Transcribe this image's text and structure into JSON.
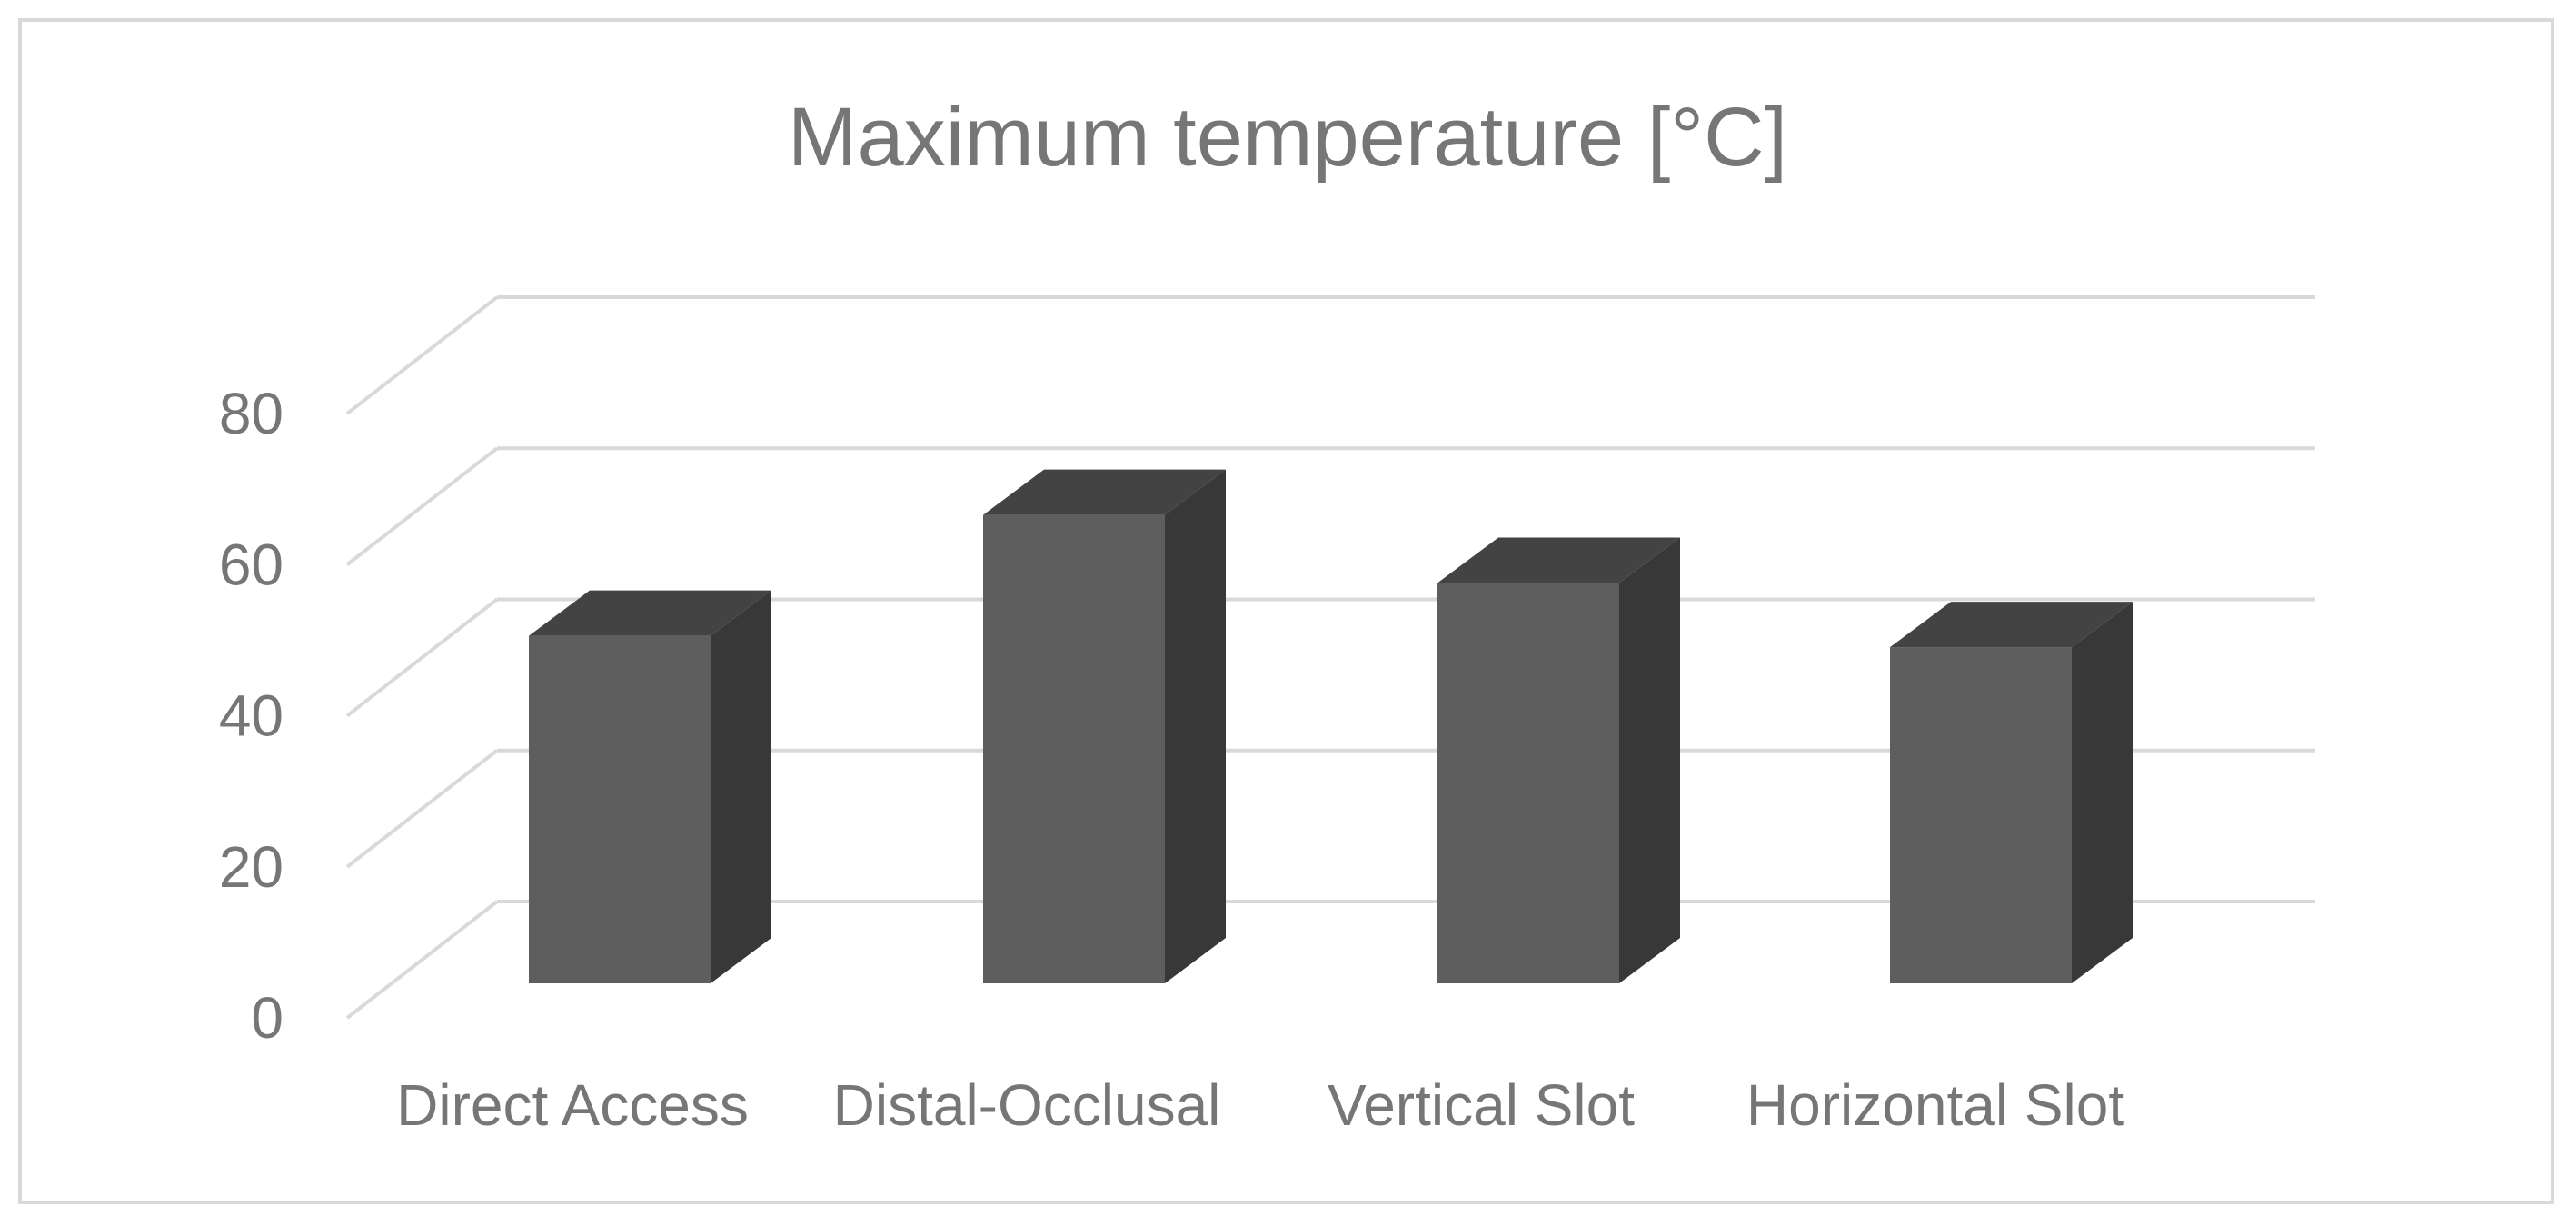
{
  "chart_data": {
    "type": "bar",
    "variant": "3d-column",
    "title": "Maximum temperature [°C]",
    "xlabel": "",
    "ylabel": "",
    "categories": [
      "Direct Access",
      "Distal-Occlusal",
      "Vertical Slot",
      "Horizontal Slot"
    ],
    "values": [
      46,
      62,
      53,
      44.5
    ],
    "ylim": [
      0,
      80
    ],
    "yticks": [
      "0",
      "20",
      "40",
      "60",
      "80"
    ],
    "grid": true,
    "legend": "none",
    "colors": {
      "bar_front": "#5e5e5e",
      "bar_top": "#434343",
      "bar_side": "#383838",
      "grid": "#d9d9d9",
      "text": "#767676",
      "border": "#d9d9d9"
    }
  }
}
